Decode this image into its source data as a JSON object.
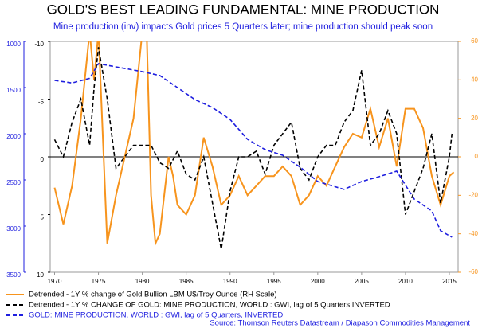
{
  "chart_data": {
    "type": "line",
    "title": "GOLD'S BEST LEADING FUNDAMENTAL: MINE PRODUCTION",
    "subtitle": "Mine production (inv) impacts Gold prices 5 Quarters later; mine production should peak soon",
    "source": "Source: Thomson Reuters Datastream / Diapason Commodities Management",
    "xlim": [
      1969.5,
      2016
    ],
    "xticks": [
      1970,
      1975,
      1980,
      1985,
      1990,
      1995,
      2000,
      2005,
      2010,
      2015
    ],
    "ylim": [
      -10,
      10
    ],
    "yticks": [
      -10,
      -5,
      0,
      5,
      10
    ],
    "y_inverted": true,
    "y2lim": [
      -60,
      60
    ],
    "y2ticks": [
      -60,
      -40,
      -20,
      0,
      20,
      40,
      60
    ],
    "y3lim": [
      1000,
      3500
    ],
    "y3ticks": [
      1000,
      1500,
      2000,
      2500,
      3000,
      3500
    ],
    "y3_inverted": true,
    "series": [
      {
        "name": "Detrended - 1Y % change of Gold Bullion LBM U$/Troy Ounce (RH Scale)",
        "color": "#f7941d",
        "axis": "y2",
        "x": [
          1970,
          1971,
          1972,
          1973,
          1974,
          1974.5,
          1975,
          1975.5,
          1976,
          1977,
          1978,
          1979,
          1980,
          1980.5,
          1981,
          1981.5,
          1982,
          1983,
          1983.5,
          1984,
          1985,
          1986,
          1987,
          1988,
          1989,
          1990,
          1991,
          1992,
          1993,
          1994,
          1995,
          1996,
          1997,
          1998,
          1999,
          2000,
          2001,
          2002,
          2003,
          2004,
          2005,
          2006,
          2007,
          2008,
          2009,
          2010,
          2011,
          2012,
          2013,
          2014,
          2015,
          2015.5
        ],
        "values": [
          -16,
          -35,
          -15,
          20,
          65,
          40,
          65,
          10,
          -45,
          -20,
          0,
          20,
          65,
          65,
          -20,
          -45,
          -40,
          0,
          -10,
          -25,
          -30,
          -20,
          10,
          -5,
          -25,
          -20,
          -10,
          -20,
          -15,
          -10,
          -10,
          -5,
          -10,
          -25,
          -20,
          -10,
          -15,
          -5,
          5,
          12,
          10,
          25,
          5,
          20,
          -5,
          25,
          25,
          15,
          -10,
          -25,
          -10,
          -8
        ]
      },
      {
        "name": "Detrended - 1Y % CHANGE OF GOLD: MINE PRODUCTION, WORLD : GWI, lag of 5 Quarters,INVERTED",
        "color": "#000000",
        "axis": "y",
        "dash": true,
        "x": [
          1970,
          1971,
          1972,
          1973,
          1974,
          1974.5,
          1975,
          1976,
          1977,
          1978,
          1979,
          1980,
          1981,
          1982,
          1983,
          1984,
          1985,
          1986,
          1987,
          1988,
          1989,
          1990,
          1991,
          1992,
          1993,
          1994,
          1995,
          1996,
          1997,
          1998,
          1999,
          2000,
          2001,
          2002,
          2003,
          2004,
          2005,
          2006,
          2007,
          2008,
          2009,
          2010,
          2011,
          2012,
          2013,
          2014,
          2015,
          2015.3
        ],
        "values": [
          -1.5,
          0,
          -3,
          -5,
          -1,
          -6,
          -9.5,
          -5,
          1,
          0,
          -1,
          -1,
          -1,
          0.5,
          1,
          -0.5,
          1.5,
          2,
          0,
          4,
          8,
          3,
          0,
          0,
          -0.5,
          1.5,
          -1,
          -2,
          -3,
          1,
          2,
          0,
          -1,
          -1,
          -3,
          -4,
          -7.5,
          -1,
          -2,
          -4,
          -2,
          5,
          3,
          1,
          -2,
          4,
          0,
          -2
        ]
      },
      {
        "name": "GOLD: MINE PRODUCTION, WORLD : GWI, lag of 5 Quarters, INVERTED",
        "color": "#1f1fdf",
        "axis": "y3",
        "dash": true,
        "x": [
          1970,
          1972,
          1974,
          1975,
          1980,
          1982,
          1984,
          1986,
          1988,
          1990,
          1992,
          1994,
          1996,
          1998,
          2000,
          2003,
          2005,
          2007,
          2009,
          2011,
          2013,
          2014,
          2015.3
        ],
        "values": [
          1422,
          1450,
          1400,
          1241,
          1328,
          1370,
          1500,
          1630,
          1716,
          1845,
          2060,
          2172,
          2233,
          2362,
          2517,
          2603,
          2517,
          2465,
          2405,
          2707,
          2836,
          3050,
          3120
        ]
      }
    ]
  }
}
